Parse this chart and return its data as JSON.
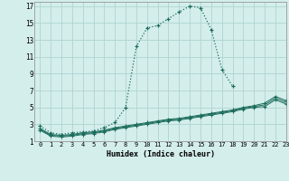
{
  "xlabel": "Humidex (Indice chaleur)",
  "xlim": [
    -0.5,
    23
  ],
  "ylim": [
    1,
    17.5
  ],
  "xticks": [
    0,
    1,
    2,
    3,
    4,
    5,
    6,
    7,
    8,
    9,
    10,
    11,
    12,
    13,
    14,
    15,
    16,
    17,
    18,
    19,
    20,
    21,
    22,
    23
  ],
  "yticks": [
    1,
    3,
    5,
    7,
    9,
    11,
    13,
    15,
    17
  ],
  "bg_color": "#d4eeec",
  "grid_color": "#aed4d0",
  "line_color": "#1a6b5a",
  "main_curve": {
    "x": [
      0,
      1,
      2,
      3,
      4,
      5,
      6,
      7,
      8,
      9,
      10,
      11,
      12,
      13,
      14,
      15,
      16,
      17,
      18
    ],
    "y": [
      2.8,
      2.0,
      1.8,
      2.0,
      2.1,
      2.2,
      2.6,
      3.2,
      5.0,
      12.2,
      14.4,
      14.7,
      15.5,
      16.3,
      17.0,
      16.8,
      14.2,
      9.5,
      7.5
    ]
  },
  "line1": {
    "x": [
      0,
      1,
      2,
      3,
      4,
      5,
      6,
      7,
      8,
      9,
      10,
      11,
      12,
      13,
      14,
      15,
      16,
      17,
      18,
      19,
      20,
      21,
      22,
      23
    ],
    "y": [
      2.5,
      1.8,
      1.7,
      1.8,
      2.0,
      2.1,
      2.3,
      2.6,
      2.8,
      3.0,
      3.2,
      3.4,
      3.6,
      3.7,
      3.9,
      4.1,
      4.3,
      4.5,
      4.7,
      5.0,
      5.2,
      5.5,
      6.3,
      5.8
    ],
    "marker_x": [
      0,
      2,
      3,
      4,
      5,
      6,
      7,
      21,
      22,
      23
    ]
  },
  "line2": {
    "x": [
      0,
      1,
      2,
      3,
      4,
      5,
      6,
      7,
      8,
      9,
      10,
      11,
      12,
      13,
      14,
      15,
      16,
      17,
      18,
      19,
      20,
      21,
      22,
      23
    ],
    "y": [
      2.3,
      1.6,
      1.5,
      1.6,
      1.8,
      1.9,
      2.1,
      2.4,
      2.6,
      2.8,
      3.0,
      3.2,
      3.4,
      3.5,
      3.7,
      3.9,
      4.1,
      4.3,
      4.5,
      4.8,
      5.0,
      5.1,
      5.9,
      5.4
    ],
    "marker_x": [
      0,
      2,
      3,
      4,
      5,
      6,
      7,
      21,
      22,
      23
    ]
  },
  "line3": {
    "x": [
      0,
      1,
      2,
      3,
      4,
      5,
      6,
      7,
      8,
      9,
      10,
      11,
      12,
      13,
      14,
      15,
      16,
      17,
      18,
      19,
      20,
      21,
      22,
      23
    ],
    "y": [
      2.4,
      1.7,
      1.6,
      1.7,
      1.9,
      2.0,
      2.2,
      2.5,
      2.7,
      2.9,
      3.1,
      3.3,
      3.5,
      3.6,
      3.8,
      4.0,
      4.2,
      4.4,
      4.6,
      4.9,
      5.1,
      5.3,
      6.1,
      5.6
    ]
  }
}
